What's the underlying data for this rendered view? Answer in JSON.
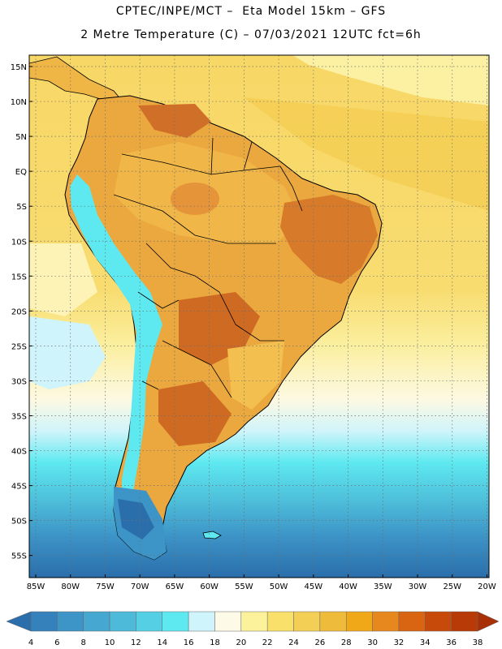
{
  "header": {
    "line1": "CPTEC/INPE/MCT –  Eta Model 15km – GFS",
    "line2": "2 Metre Temperature (C) – 07/03/2021 12UTC fct=6h"
  },
  "map": {
    "variable": "2 Metre Temperature",
    "units": "C",
    "region": "South America",
    "lat_labels": [
      "15N",
      "10N",
      "5N",
      "EQ",
      "5S",
      "10S",
      "15S",
      "20S",
      "25S",
      "30S",
      "35S",
      "40S",
      "45S",
      "50S",
      "55S"
    ],
    "lon_labels": [
      "85W",
      "80W",
      "75W",
      "70W",
      "65W",
      "60W",
      "55W",
      "50W",
      "45W",
      "40W",
      "35W",
      "30W",
      "25W",
      "20W"
    ],
    "colors": {
      "ocean_tropical": "#f6d460",
      "ocean_subtropical": "#fbee9a",
      "land_warm": "#e9a43c",
      "land_hot": "#c86420",
      "andes_cold": "#5ee9f0",
      "ocean_cold": "#3da9d4",
      "ocean_coldest": "#2a6eab"
    }
  },
  "colorbar": {
    "labels": [
      "4",
      "6",
      "8",
      "10",
      "12",
      "14",
      "16",
      "18",
      "20",
      "22",
      "24",
      "26",
      "28",
      "30",
      "32",
      "34",
      "36",
      "38"
    ],
    "colors": [
      "#2a6eab",
      "#3481bb",
      "#3d94c7",
      "#46a8d1",
      "#4cbad8",
      "#54cfe3",
      "#5ee9f0",
      "#cff4fb",
      "#fdfbe8",
      "#fcf29c",
      "#f8e06a",
      "#f4cf55",
      "#efbb3a",
      "#f0a819",
      "#e6881e",
      "#d96512",
      "#c84a0b",
      "#b83a06",
      "#a83006"
    ]
  }
}
